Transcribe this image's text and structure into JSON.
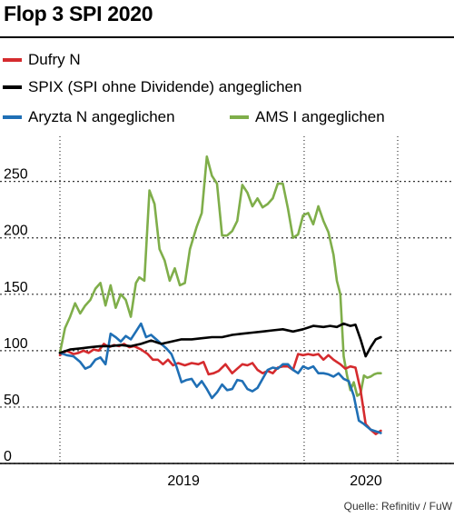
{
  "title": "Flop 3 SPI 2020",
  "source": "Quelle: Refinitiv / FuW",
  "chart_data": {
    "type": "line",
    "title": "Flop 3 SPI 2020",
    "ylim": [
      0,
      290
    ],
    "xlim": [
      0,
      1
    ],
    "y_ticks": [
      0,
      50,
      100,
      150,
      200,
      250
    ],
    "y_tick_labels": [
      "0",
      "50",
      "100",
      "150",
      "200",
      "250"
    ],
    "x_labels": [
      {
        "label": "2019",
        "x": 0.366
      },
      {
        "label": "2020",
        "x": 0.906
      }
    ],
    "grid": "dotted vertical year separators",
    "legend_position": "top-left",
    "series": [
      {
        "name": "Dufry N",
        "color": "#d52b2e",
        "x": [
          0,
          0.02,
          0.04,
          0.055,
          0.07,
          0.085,
          0.1,
          0.115,
          0.13,
          0.145,
          0.16,
          0.175,
          0.19,
          0.205,
          0.22,
          0.24,
          0.26,
          0.275,
          0.29,
          0.305,
          0.32,
          0.335,
          0.35,
          0.37,
          0.39,
          0.41,
          0.425,
          0.44,
          0.455,
          0.47,
          0.49,
          0.51,
          0.525,
          0.54,
          0.555,
          0.57,
          0.585,
          0.6,
          0.615,
          0.63,
          0.645,
          0.66,
          0.675,
          0.69,
          0.705,
          0.72,
          0.735,
          0.75,
          0.765,
          0.78,
          0.795,
          0.81,
          0.82,
          0.83,
          0.845,
          0.86,
          0.875,
          0.89,
          0.905,
          0.92,
          0.935,
          0.95
        ],
        "values": [
          96,
          100,
          97,
          98,
          100,
          98,
          101,
          100,
          106,
          103,
          105,
          104,
          106,
          103,
          104,
          101,
          97,
          92,
          92,
          88,
          92,
          87,
          89,
          87,
          89,
          88,
          90,
          79,
          80,
          82,
          88,
          80,
          84,
          88,
          87,
          89,
          83,
          80,
          82,
          80,
          85,
          86,
          86,
          83,
          97,
          96,
          97,
          96,
          97,
          92,
          96,
          92,
          90,
          88,
          84,
          86,
          85,
          65,
          35,
          30,
          26,
          29
        ]
      },
      {
        "name": "SPIX (SPI ohne Dividende) angeglichen",
        "color": "#000000",
        "x": [
          0,
          0.03,
          0.06,
          0.09,
          0.12,
          0.15,
          0.18,
          0.21,
          0.24,
          0.27,
          0.3,
          0.33,
          0.36,
          0.39,
          0.42,
          0.45,
          0.48,
          0.51,
          0.54,
          0.57,
          0.6,
          0.63,
          0.66,
          0.69,
          0.72,
          0.75,
          0.78,
          0.8,
          0.82,
          0.84,
          0.86,
          0.875,
          0.89,
          0.905,
          0.92,
          0.935,
          0.95
        ],
        "values": [
          98,
          101,
          102,
          103,
          104,
          104,
          105,
          104,
          106,
          109,
          106,
          108,
          110,
          110,
          111,
          112,
          112,
          114,
          115,
          116,
          117,
          118,
          119,
          117,
          119,
          122,
          121,
          122,
          121,
          124,
          122,
          123,
          110,
          95,
          103,
          110,
          112
        ]
      },
      {
        "name": "Aryzta N angeglichen",
        "color": "#1f6fb5",
        "x": [
          0,
          0.02,
          0.04,
          0.06,
          0.075,
          0.09,
          0.105,
          0.12,
          0.135,
          0.15,
          0.165,
          0.18,
          0.195,
          0.21,
          0.225,
          0.24,
          0.255,
          0.27,
          0.285,
          0.3,
          0.315,
          0.33,
          0.345,
          0.36,
          0.375,
          0.39,
          0.405,
          0.42,
          0.435,
          0.45,
          0.465,
          0.48,
          0.495,
          0.51,
          0.525,
          0.54,
          0.555,
          0.57,
          0.585,
          0.6,
          0.615,
          0.63,
          0.645,
          0.66,
          0.675,
          0.69,
          0.705,
          0.72,
          0.735,
          0.75,
          0.765,
          0.78,
          0.795,
          0.81,
          0.825,
          0.84,
          0.855,
          0.87,
          0.885,
          0.9,
          0.92,
          0.94,
          0.95
        ],
        "values": [
          98,
          96,
          95,
          90,
          84,
          86,
          92,
          94,
          88,
          115,
          112,
          108,
          113,
          110,
          117,
          124,
          112,
          114,
          110,
          106,
          102,
          97,
          86,
          72,
          74,
          75,
          68,
          73,
          66,
          58,
          63,
          70,
          65,
          66,
          74,
          73,
          66,
          64,
          67,
          75,
          83,
          85,
          84,
          88,
          88,
          83,
          80,
          86,
          84,
          86,
          80,
          80,
          79,
          77,
          80,
          75,
          73,
          60,
          38,
          35,
          30,
          28,
          27
        ]
      },
      {
        "name": "AMS I angeglichen",
        "color": "#7fae4a",
        "x": [
          0,
          0.015,
          0.03,
          0.045,
          0.06,
          0.075,
          0.09,
          0.105,
          0.12,
          0.135,
          0.15,
          0.165,
          0.18,
          0.195,
          0.21,
          0.225,
          0.235,
          0.25,
          0.265,
          0.28,
          0.295,
          0.31,
          0.325,
          0.34,
          0.355,
          0.37,
          0.385,
          0.395,
          0.405,
          0.42,
          0.435,
          0.45,
          0.465,
          0.48,
          0.495,
          0.51,
          0.525,
          0.54,
          0.555,
          0.57,
          0.585,
          0.6,
          0.615,
          0.63,
          0.645,
          0.66,
          0.675,
          0.69,
          0.705,
          0.72,
          0.735,
          0.75,
          0.765,
          0.78,
          0.795,
          0.81,
          0.82,
          0.83,
          0.84,
          0.85,
          0.86,
          0.87,
          0.88,
          0.89,
          0.9,
          0.91,
          0.92,
          0.93,
          0.94,
          0.95
        ],
        "values": [
          98,
          120,
          130,
          142,
          133,
          140,
          145,
          155,
          160,
          140,
          158,
          138,
          150,
          145,
          130,
          160,
          165,
          162,
          242,
          230,
          190,
          180,
          162,
          173,
          158,
          160,
          190,
          200,
          210,
          222,
          272,
          255,
          248,
          202,
          202,
          206,
          215,
          247,
          240,
          228,
          235,
          227,
          230,
          235,
          248,
          248,
          226,
          200,
          203,
          220,
          222,
          212,
          228,
          215,
          205,
          185,
          162,
          150,
          95,
          78,
          65,
          72,
          60,
          62,
          78,
          76,
          77,
          79,
          80,
          80
        ]
      }
    ]
  }
}
